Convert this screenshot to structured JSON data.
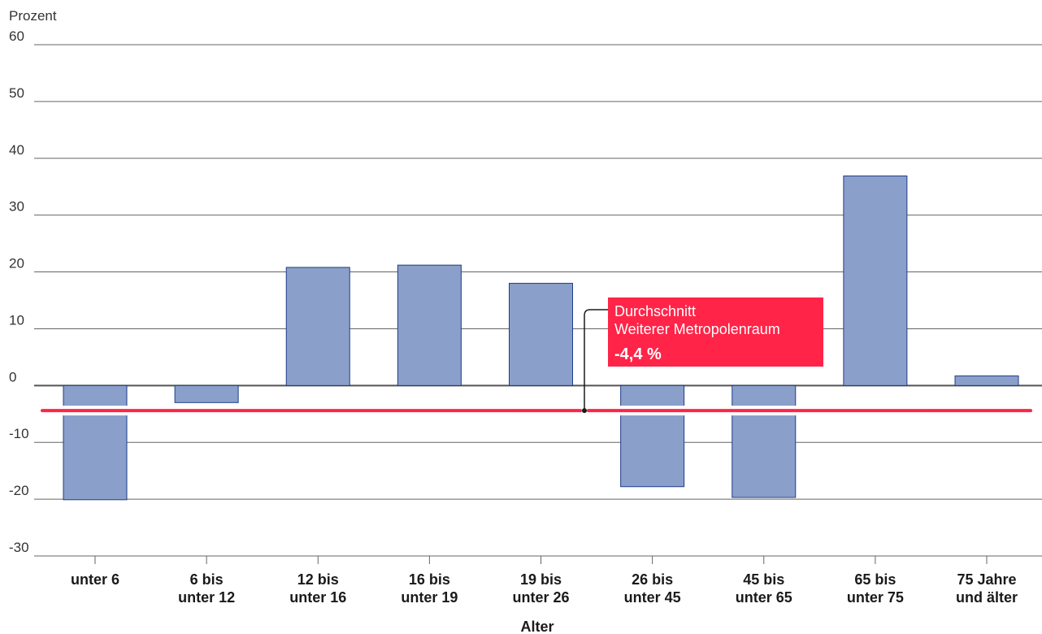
{
  "chart_data": {
    "type": "bar",
    "ylabel": "Prozent",
    "xlabel": "Alter",
    "ylim": [
      -30,
      60
    ],
    "yticks": [
      60,
      50,
      40,
      30,
      20,
      10,
      0,
      -10,
      -20,
      -30
    ],
    "grid": true,
    "categories": [
      [
        "unter 6"
      ],
      [
        "6 bis",
        "unter 12"
      ],
      [
        "12 bis",
        "unter 16"
      ],
      [
        "16 bis",
        "unter 19"
      ],
      [
        "19 bis",
        "unter 26"
      ],
      [
        "26 bis",
        "unter 45"
      ],
      [
        "45 bis",
        "unter 65"
      ],
      [
        "65 bis",
        "unter 75"
      ],
      [
        "75 Jahre",
        "und älter"
      ]
    ],
    "values": [
      -20.1,
      -3.0,
      20.8,
      21.2,
      18.0,
      -17.8,
      -19.7,
      36.9,
      1.7
    ],
    "reference_line": {
      "value": -4.4,
      "label_lines": [
        "Durchschnitt",
        "Weiterer Metropolenraum"
      ],
      "value_label": "-4,4 %"
    },
    "colors": {
      "bar_fill": "#8a9fc9",
      "bar_stroke": "#1f3d8a",
      "reference": "#ff2448",
      "grid": "#666666",
      "zero_line": "#555555"
    }
  }
}
